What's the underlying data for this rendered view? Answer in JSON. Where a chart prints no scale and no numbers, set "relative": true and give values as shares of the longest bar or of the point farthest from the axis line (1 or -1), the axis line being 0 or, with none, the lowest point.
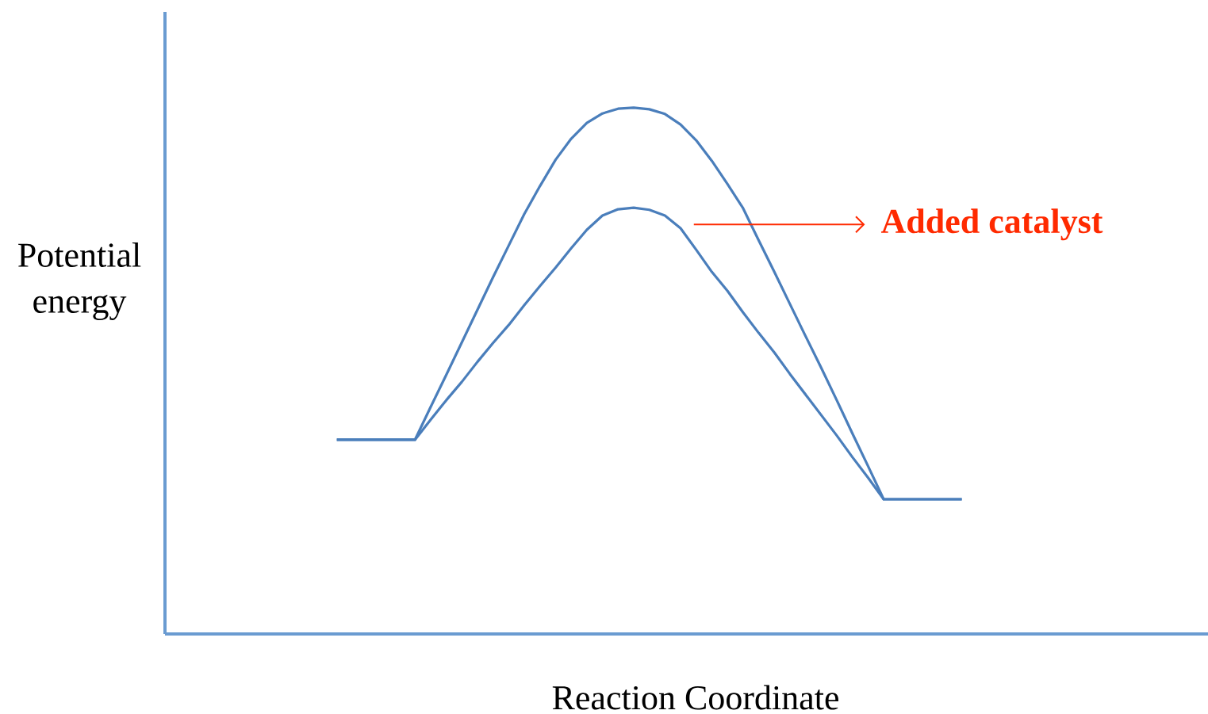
{
  "chart_data": {
    "type": "line",
    "relative": true,
    "xlabel": "Reaction Coordinate",
    "ylabel": "Potential energy",
    "annotations": [
      "Added catalyst"
    ],
    "categories": [
      null,
      null,
      null,
      null,
      null,
      null,
      null,
      null,
      null,
      null,
      null,
      null,
      null,
      null,
      null,
      null,
      null,
      null,
      null,
      null,
      null,
      null,
      null,
      null,
      null,
      null,
      null,
      null,
      null,
      null,
      null,
      null,
      null,
      null,
      null,
      null,
      null,
      null,
      null,
      null,
      null,
      null,
      null,
      null,
      null,
      null,
      null,
      null,
      null,
      null,
      null,
      null,
      null,
      null,
      null,
      null,
      null,
      null,
      null,
      null,
      null,
      null,
      null,
      null,
      null,
      null,
      null
    ],
    "series": [
      {
        "color": "#4a7ebb",
        "values": [
          null,
          null,
          null,
          null,
          null,
          null,
          null,
          null,
          null,
          null,
          null,
          0.369,
          0.369,
          0.369,
          0.369,
          0.369,
          0.369,
          0.431,
          0.492,
          0.554,
          0.616,
          0.678,
          0.738,
          0.798,
          0.851,
          0.901,
          0.941,
          0.971,
          0.989,
          0.998,
          1,
          0.997,
          0.988,
          0.968,
          0.938,
          0.899,
          0.855,
          0.809,
          0.748,
          0.688,
          0.627,
          0.566,
          0.506,
          0.444,
          0.381,
          0.319,
          0.256,
          0.256,
          0.256,
          0.256,
          0.256,
          0.256,
          null,
          null,
          null,
          null,
          null,
          null,
          null,
          null,
          null,
          null,
          null,
          null,
          null,
          null,
          null
        ]
      },
      {
        "color": "#4a7ebb",
        "values": [
          null,
          null,
          null,
          null,
          null,
          null,
          null,
          null,
          null,
          null,
          null,
          0.369,
          0.369,
          0.369,
          0.369,
          0.369,
          0.369,
          0.407,
          0.444,
          0.479,
          0.517,
          0.553,
          0.587,
          0.625,
          0.661,
          0.696,
          0.733,
          0.768,
          0.795,
          0.807,
          0.81,
          0.806,
          0.795,
          0.771,
          0.73,
          0.688,
          0.652,
          0.611,
          0.572,
          0.535,
          0.494,
          0.455,
          0.416,
          0.377,
          0.336,
          0.297,
          0.256,
          0.256,
          0.256,
          0.256,
          0.256,
          0.256,
          null,
          null,
          null,
          null,
          null,
          null,
          null,
          null,
          null,
          null,
          null,
          null,
          null,
          null,
          null
        ]
      }
    ]
  }
}
